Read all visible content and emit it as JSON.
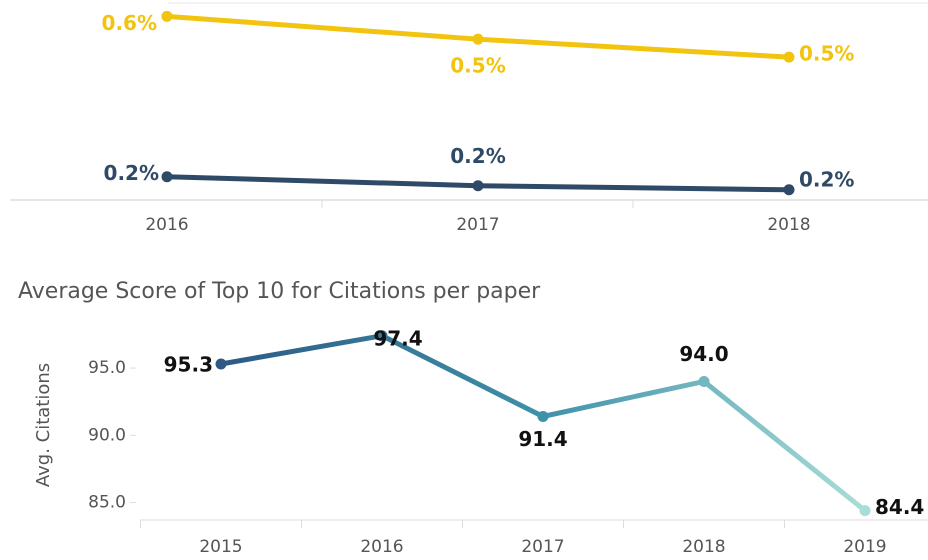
{
  "chart_data": [
    {
      "type": "line",
      "categories": [
        "2016",
        "2017",
        "2018"
      ],
      "series": [
        {
          "color": "#f2c40f",
          "values": [
            0.6,
            0.544,
            0.5
          ],
          "value_labels": [
            "0.6%",
            "0.5%",
            "0.5%"
          ]
        },
        {
          "color": "#2f4a66",
          "values": [
            0.207,
            0.185,
            0.175
          ],
          "value_labels": [
            "0.2%",
            "0.2%",
            "0.2%"
          ]
        }
      ],
      "ylim": [
        0.15,
        0.64
      ]
    },
    {
      "type": "gradient-line",
      "title": "Average Score of Top 10 for Citations per paper",
      "y_label": "Avg. Citations",
      "categories": [
        "2015",
        "2016",
        "2017",
        "2018",
        "2019"
      ],
      "values": [
        95.3,
        97.4,
        91.4,
        94.0,
        84.4
      ],
      "value_labels": [
        "95.3",
        "97.4",
        "91.4",
        "94.0",
        "84.4"
      ],
      "colors": [
        "#2d5a85",
        "#3f91a9",
        "#a9ddd7"
      ],
      "ylim": [
        83.7,
        98.2
      ],
      "yticks": [
        {
          "value": 85,
          "label": "85.0"
        },
        {
          "value": 90,
          "label": "90.0"
        },
        {
          "value": 95,
          "label": "95.0"
        }
      ]
    }
  ]
}
